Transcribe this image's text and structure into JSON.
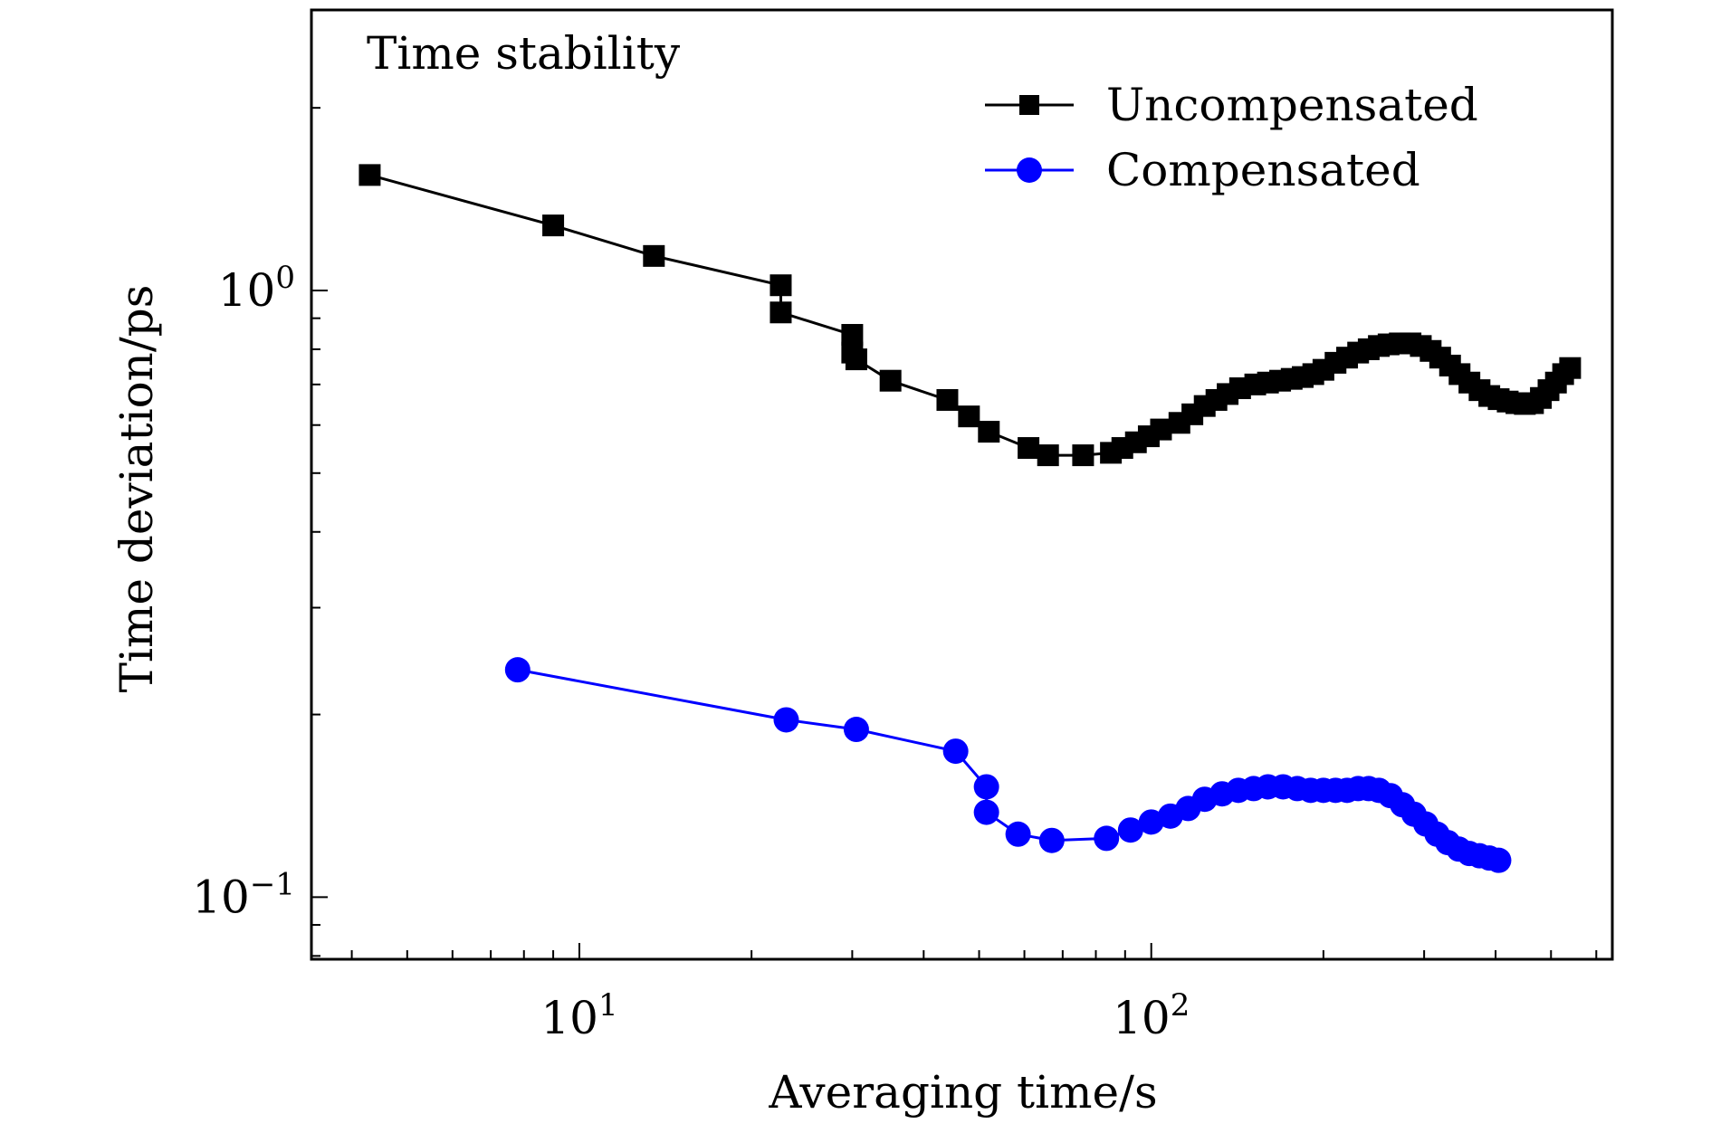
{
  "chart_data": {
    "type": "line",
    "title": "",
    "annotation": "Time stability",
    "xlabel": "Averaging time/s",
    "ylabel": "Time deviation/ps",
    "xscale": "log",
    "yscale": "log",
    "xlim": [
      3.4,
      640
    ],
    "ylim": [
      0.079,
      2.9
    ],
    "x_ticks": [
      {
        "value": 10,
        "base": "10",
        "exp": "1"
      },
      {
        "value": 100,
        "base": "10",
        "exp": "2"
      }
    ],
    "y_ticks": [
      {
        "value": 1,
        "base": "10",
        "exp": "0"
      },
      {
        "value": 0.1,
        "base": "10",
        "exp": "−1"
      }
    ],
    "grid": false,
    "legend_position": "top-right",
    "series": [
      {
        "name": "Uncompensated",
        "color": "#000000",
        "marker": "square",
        "points": [
          [
            4.3,
            1.55
          ],
          [
            9.0,
            1.28
          ],
          [
            13.5,
            1.14
          ],
          [
            22.5,
            1.02
          ],
          [
            22.5,
            0.92
          ],
          [
            30.0,
            0.845
          ],
          [
            30.0,
            0.79
          ],
          [
            30.5,
            0.77
          ],
          [
            35.0,
            0.71
          ],
          [
            44.0,
            0.66
          ],
          [
            48.0,
            0.62
          ],
          [
            52.0,
            0.585
          ],
          [
            61.0,
            0.55
          ],
          [
            66.0,
            0.535
          ],
          [
            76.0,
            0.535
          ],
          [
            85.0,
            0.54
          ],
          [
            89.0,
            0.55
          ],
          [
            94.0,
            0.562
          ],
          [
            99.0,
            0.575
          ],
          [
            104.0,
            0.59
          ],
          [
            112.0,
            0.605
          ],
          [
            118.0,
            0.625
          ],
          [
            124.0,
            0.645
          ],
          [
            130.0,
            0.66
          ],
          [
            136.0,
            0.675
          ],
          [
            143.0,
            0.69
          ],
          [
            152.0,
            0.7
          ],
          [
            160.0,
            0.705
          ],
          [
            168.0,
            0.71
          ],
          [
            176.0,
            0.715
          ],
          [
            184.0,
            0.72
          ],
          [
            192.0,
            0.728
          ],
          [
            200.0,
            0.74
          ],
          [
            210.0,
            0.76
          ],
          [
            220.0,
            0.775
          ],
          [
            230.0,
            0.79
          ],
          [
            240.0,
            0.8
          ],
          [
            250.0,
            0.81
          ],
          [
            260.0,
            0.815
          ],
          [
            272.0,
            0.818
          ],
          [
            284.0,
            0.818
          ],
          [
            296.0,
            0.81
          ],
          [
            308.0,
            0.795
          ],
          [
            320.0,
            0.775
          ],
          [
            333.0,
            0.752
          ],
          [
            346.0,
            0.728
          ],
          [
            360.0,
            0.705
          ],
          [
            375.0,
            0.685
          ],
          [
            390.0,
            0.67
          ],
          [
            405.0,
            0.662
          ],
          [
            420.0,
            0.656
          ],
          [
            435.0,
            0.652
          ],
          [
            450.0,
            0.65
          ],
          [
            465.0,
            0.652
          ],
          [
            480.0,
            0.665
          ],
          [
            495.0,
            0.685
          ],
          [
            510.0,
            0.705
          ],
          [
            525.0,
            0.728
          ],
          [
            540.0,
            0.745
          ]
        ]
      },
      {
        "name": "Compensated",
        "color": "#0000ff",
        "marker": "circle",
        "points": [
          [
            7.8,
            0.237
          ],
          [
            23.0,
            0.196
          ],
          [
            30.5,
            0.189
          ],
          [
            45.5,
            0.174
          ],
          [
            51.5,
            0.152
          ],
          [
            51.5,
            0.138
          ],
          [
            58.5,
            0.127
          ],
          [
            67.0,
            0.124
          ],
          [
            83.5,
            0.125
          ],
          [
            92.0,
            0.129
          ],
          [
            100.0,
            0.133
          ],
          [
            108.0,
            0.136
          ],
          [
            116.0,
            0.14
          ],
          [
            124.0,
            0.145
          ],
          [
            133.0,
            0.148
          ],
          [
            142.0,
            0.15
          ],
          [
            151.0,
            0.151
          ],
          [
            160.0,
            0.152
          ],
          [
            170.0,
            0.152
          ],
          [
            180.0,
            0.151
          ],
          [
            190.0,
            0.15
          ],
          [
            200.0,
            0.15
          ],
          [
            210.0,
            0.15
          ],
          [
            220.0,
            0.15
          ],
          [
            230.0,
            0.151
          ],
          [
            240.0,
            0.151
          ],
          [
            250.0,
            0.15
          ],
          [
            262.0,
            0.147
          ],
          [
            275.0,
            0.142
          ],
          [
            288.0,
            0.137
          ],
          [
            302.0,
            0.132
          ],
          [
            316.0,
            0.127
          ],
          [
            330.0,
            0.123
          ],
          [
            345.0,
            0.12
          ],
          [
            360.0,
            0.118
          ],
          [
            375.0,
            0.117
          ],
          [
            390.0,
            0.116
          ],
          [
            405.0,
            0.115
          ]
        ]
      }
    ]
  }
}
